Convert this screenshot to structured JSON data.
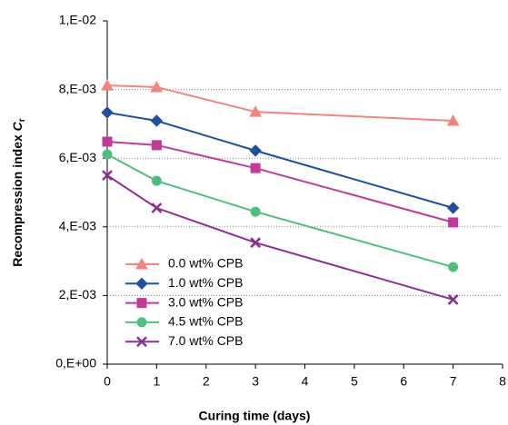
{
  "chart_data": {
    "type": "line",
    "xlabel": "Curing time (days)",
    "ylabel": "Recompression index",
    "ylabel_symbol": "C",
    "ylabel_subscript": "r",
    "xlim": [
      0,
      8
    ],
    "xticks": [
      0,
      1,
      2,
      3,
      4,
      5,
      6,
      7,
      8
    ],
    "ylim": [
      0,
      0.01
    ],
    "yticks": [
      {
        "value": 0,
        "label": "0,E+00"
      },
      {
        "value": 0.002,
        "label": "2,E-03"
      },
      {
        "value": 0.004,
        "label": "4,E-03"
      },
      {
        "value": 0.006,
        "label": "6,E-03"
      },
      {
        "value": 0.008,
        "label": "8,E-03"
      },
      {
        "value": 0.01,
        "label": "1,E-02"
      }
    ],
    "grid": true,
    "legend": "lower left",
    "x": [
      0,
      1,
      3,
      7
    ],
    "series": [
      {
        "name": "0.0 wt% CPB",
        "color": "#f4837b",
        "marker": "triangle",
        "values": [
          0.00812,
          0.00807,
          0.00735,
          0.00709
        ]
      },
      {
        "name": "1.0 wt% CPB",
        "color": "#1f4fa0",
        "marker": "diamond",
        "values": [
          0.00733,
          0.00709,
          0.00622,
          0.00455
        ]
      },
      {
        "name": "3.0 wt% CPB",
        "color": "#c2399a",
        "marker": "square",
        "values": [
          0.00648,
          0.00638,
          0.00571,
          0.00413
        ]
      },
      {
        "name": "4.5 wt% CPB",
        "color": "#4dbf7d",
        "marker": "circle",
        "values": [
          0.00611,
          0.00534,
          0.00444,
          0.00283
        ]
      },
      {
        "name": "7.0 wt% CPB",
        "color": "#8b2e8f",
        "marker": "cross",
        "values": [
          0.0055,
          0.00455,
          0.00354,
          0.00188
        ]
      }
    ]
  }
}
